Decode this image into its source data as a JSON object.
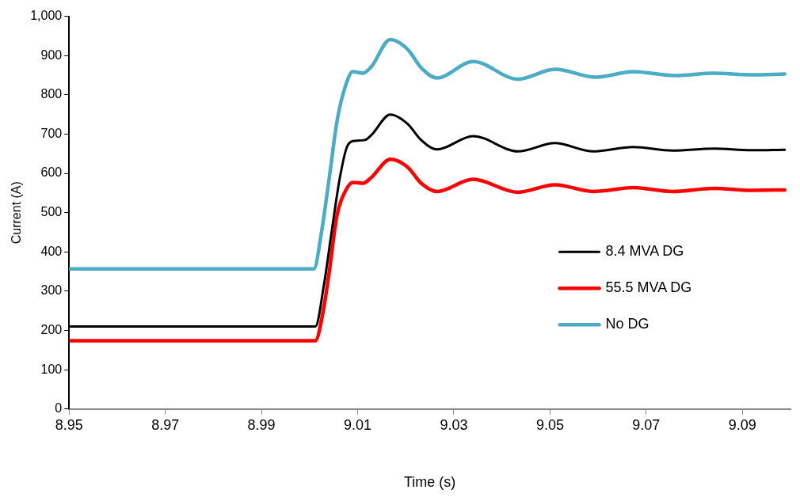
{
  "chart_data": {
    "type": "line",
    "xlabel": "Time (s)",
    "ylabel": "Current (A)",
    "xlim": [
      8.95,
      9.1
    ],
    "xticks": [
      8.95,
      8.97,
      8.99,
      9.01,
      9.03,
      9.05,
      9.07,
      9.09
    ],
    "ylim": [
      0,
      1000
    ],
    "yticks": [
      0,
      100,
      200,
      300,
      400,
      500,
      600,
      700,
      800,
      900,
      {
        "value": 1000,
        "label": "1,000"
      }
    ],
    "grid": false,
    "legend": "right",
    "marker": "none",
    "line_style": "solid",
    "series": [
      {
        "name": "8.4 MVA DG",
        "color": "#000000",
        "x": [
          8.95,
          9.0012,
          9.003,
          9.0046,
          9.0063,
          9.0079,
          9.0095,
          9.0115,
          9.0128,
          9.0168,
          9.0204,
          9.0232,
          9.0265,
          9.034,
          9.0433,
          9.051,
          9.059,
          9.0673,
          9.0755,
          9.0841,
          9.0918,
          9.0988
        ],
        "values": [
          210,
          210,
          317,
          452,
          589,
          671,
          683,
          685,
          697,
          750,
          726,
          685,
          661,
          695,
          656,
          677,
          656,
          667,
          658,
          663,
          659,
          660
        ]
      },
      {
        "name": "55.5 MVA DG",
        "color": "#ff0000",
        "x": [
          8.95,
          9.0012,
          9.0028,
          9.0041,
          9.0057,
          9.0074,
          9.009,
          9.0111,
          9.0128,
          9.0168,
          9.0204,
          9.0232,
          9.0265,
          9.034,
          9.0433,
          9.051,
          9.059,
          9.0673,
          9.0755,
          9.0841,
          9.0918,
          9.0988
        ],
        "values": [
          174,
          174,
          247,
          350,
          493,
          554,
          577,
          575,
          589,
          636,
          616,
          575,
          554,
          585,
          552,
          571,
          554,
          564,
          554,
          562,
          557,
          558
        ]
      },
      {
        "name": "No DG",
        "color": "#4bacc6",
        "x": [
          8.95,
          9.0009,
          9.0025,
          9.0041,
          9.0057,
          9.0074,
          9.009,
          9.0111,
          9.0128,
          9.0168,
          9.0204,
          9.0232,
          9.0265,
          9.034,
          9.0433,
          9.051,
          9.0596,
          9.0673,
          9.076,
          9.0841,
          9.0918,
          9.0988
        ],
        "values": [
          357,
          357,
          452,
          589,
          732,
          820,
          859,
          855,
          871,
          941,
          916,
          869,
          843,
          885,
          840,
          865,
          845,
          859,
          849,
          855,
          851,
          853
        ]
      }
    ]
  }
}
